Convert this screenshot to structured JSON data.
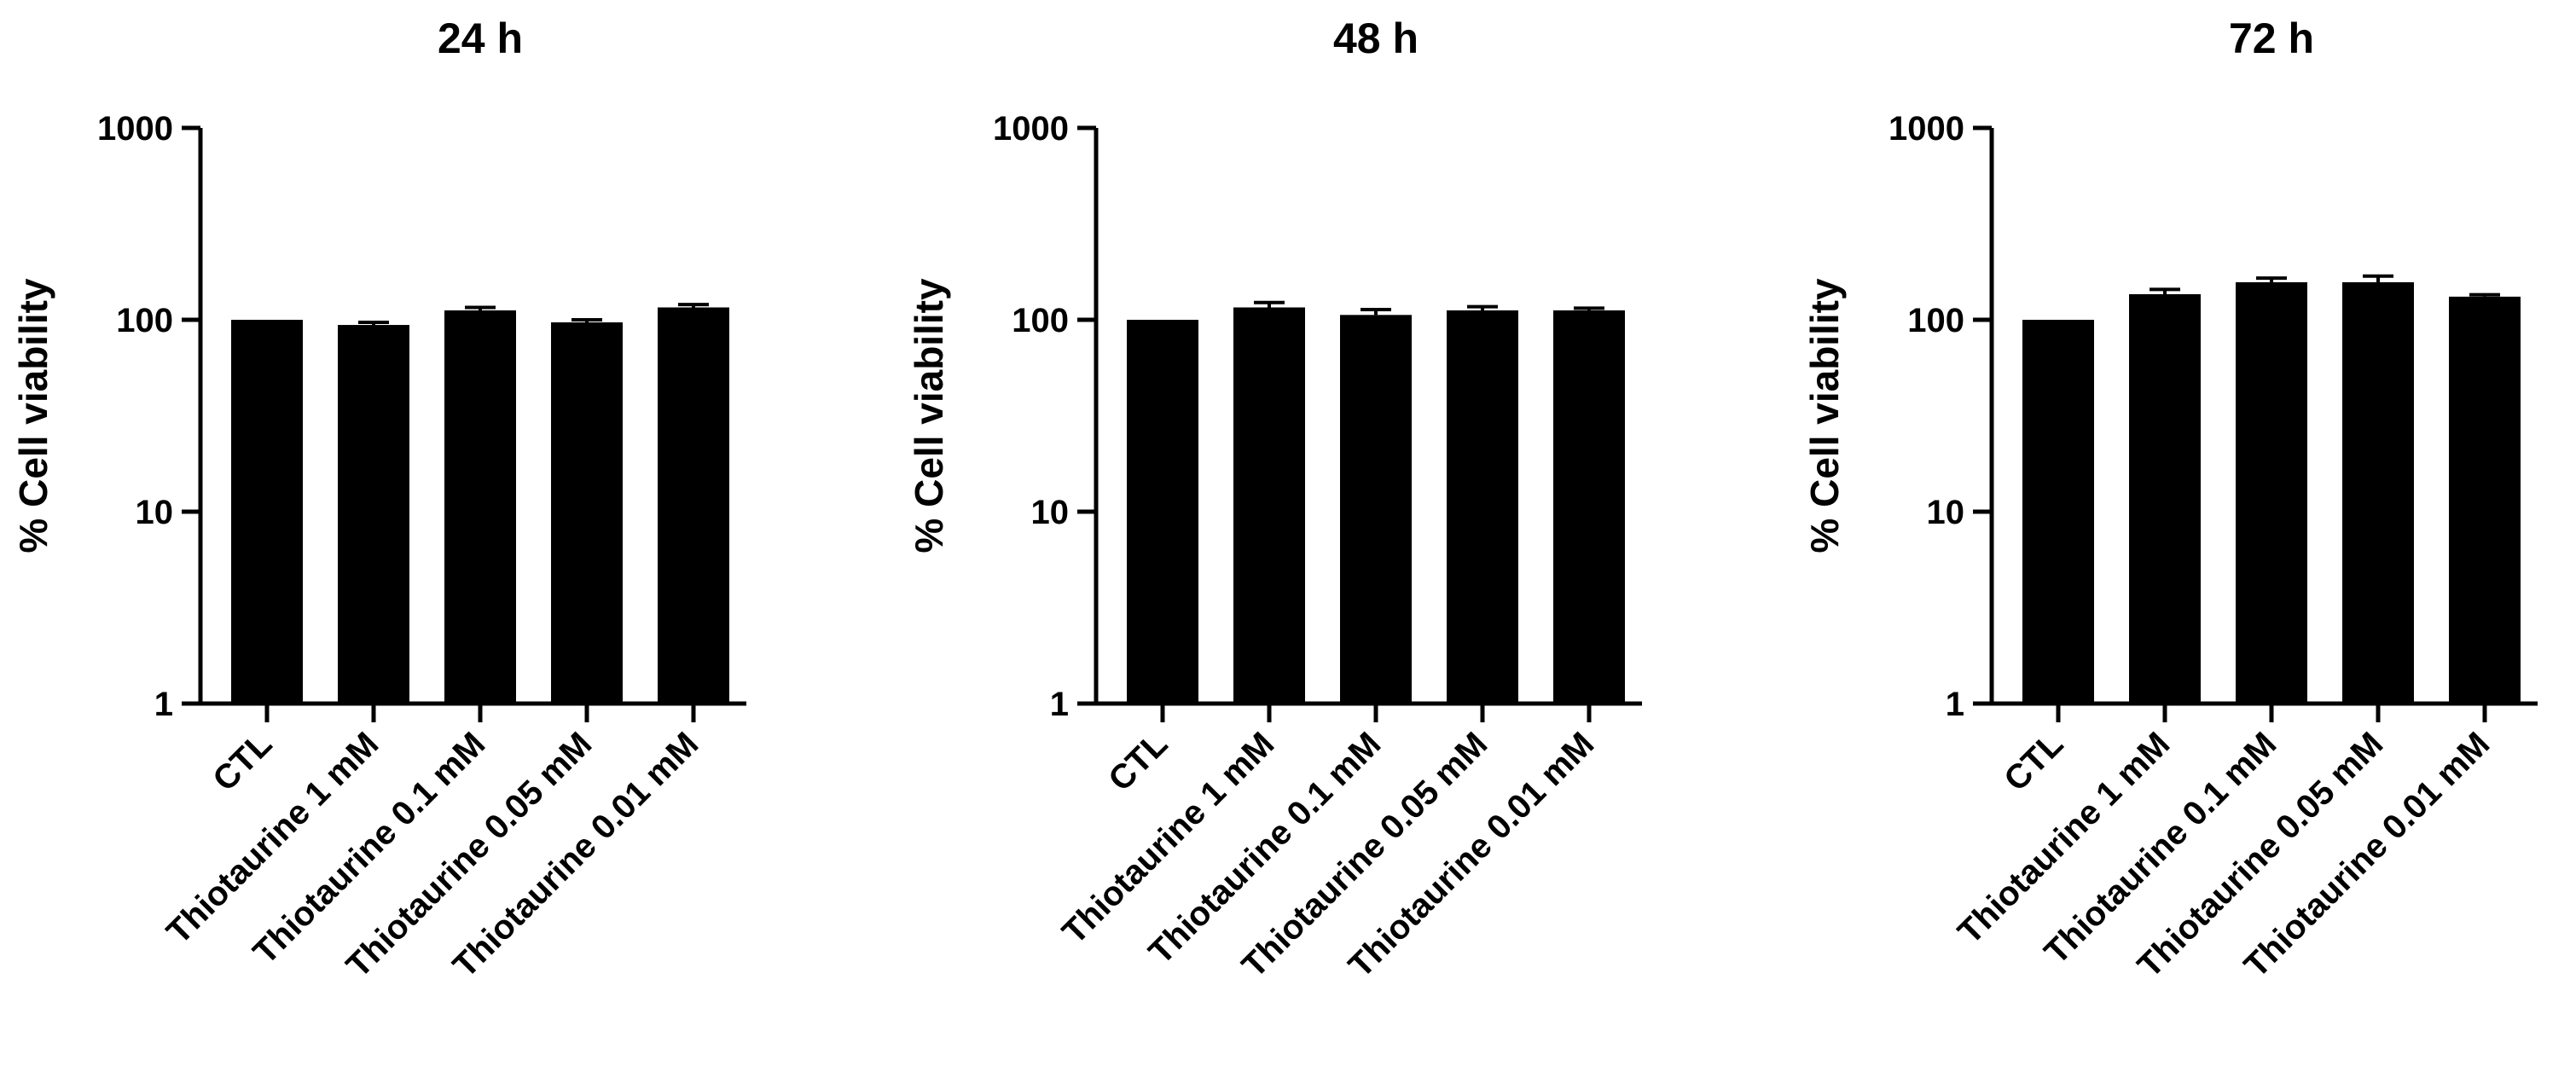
{
  "chart_data": [
    {
      "type": "bar",
      "title": "24 h",
      "ylabel": "% Cell viability",
      "xlabel": "",
      "yscale": "log",
      "ylim": [
        1,
        1000
      ],
      "yticks": [
        "1",
        "10",
        "100",
        "1000"
      ],
      "categories": [
        "CTL",
        "Thiotaurine 1 mM",
        "Thiotaurine 0.1 mM",
        "Thiotaurine 0.05 mM",
        "Thiotaurine 0.01 mM"
      ],
      "values": [
        100,
        94,
        112,
        97,
        116
      ],
      "errors": [
        0,
        3,
        4,
        3,
        4
      ],
      "color": "#000000"
    },
    {
      "type": "bar",
      "title": "48 h",
      "ylabel": "% Cell viability",
      "xlabel": "",
      "yscale": "log",
      "ylim": [
        1,
        1000
      ],
      "yticks": [
        "1",
        "10",
        "100",
        "1000"
      ],
      "categories": [
        "CTL",
        "Thiotaurine 1 mM",
        "Thiotaurine 0.1 mM",
        "Thiotaurine 0.05 mM",
        "Thiotaurine 0.01 mM"
      ],
      "values": [
        100,
        116,
        106,
        112,
        112
      ],
      "errors": [
        0,
        7,
        7,
        5,
        3
      ],
      "color": "#000000"
    },
    {
      "type": "bar",
      "title": "72 h",
      "ylabel": "% Cell viability",
      "xlabel": "",
      "yscale": "log",
      "ylim": [
        1,
        1000
      ],
      "yticks": [
        "1",
        "10",
        "100",
        "1000"
      ],
      "categories": [
        "CTL",
        "Thiotaurine 1 mM",
        "Thiotaurine 0.1 mM",
        "Thiotaurine 0.05 mM",
        "Thiotaurine 0.01 mM"
      ],
      "values": [
        100,
        136,
        157,
        157,
        132
      ],
      "errors": [
        0,
        8,
        8,
        12,
        3
      ],
      "color": "#000000"
    }
  ]
}
